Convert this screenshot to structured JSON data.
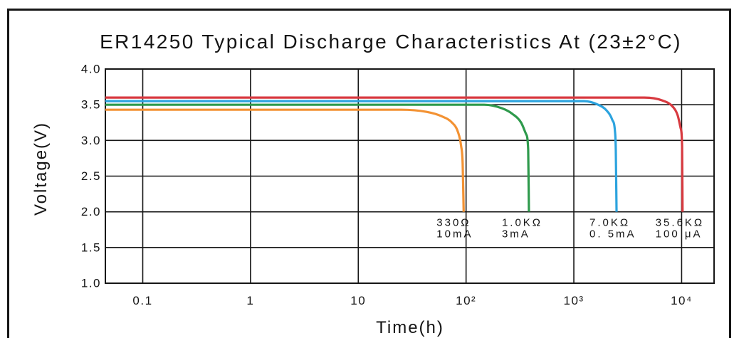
{
  "chart_data": {
    "type": "line",
    "title": "ER14250 Typical Discharge Characteristics At (23±2°C)",
    "xlabel": "Time(h)",
    "ylabel": "Voltage(V)",
    "xscale": "log",
    "xlim": [
      0.045,
      20000
    ],
    "ylim": [
      1.0,
      4.0
    ],
    "grid": true,
    "yticks": [
      {
        "value": 4.0,
        "label": "4.0"
      },
      {
        "value": 3.5,
        "label": "3.5"
      },
      {
        "value": 3.0,
        "label": "3.0"
      },
      {
        "value": 2.5,
        "label": "2.5"
      },
      {
        "value": 2.0,
        "label": "2.0"
      },
      {
        "value": 1.5,
        "label": "1.5"
      },
      {
        "value": 1.0,
        "label": "1.0"
      }
    ],
    "xticks": [
      {
        "value": 0.1,
        "label": "0.1"
      },
      {
        "value": 1,
        "label": "1"
      },
      {
        "value": 10,
        "label": "10"
      },
      {
        "value": 100,
        "label": "10²"
      },
      {
        "value": 1000,
        "label": "10³"
      },
      {
        "value": 10000,
        "label": "10⁴"
      }
    ],
    "series": [
      {
        "label_lines": [
          "330Ω",
          "10mA"
        ],
        "color": "#f39233",
        "points": [
          [
            0.045,
            3.43
          ],
          [
            25,
            3.43
          ],
          [
            43,
            3.4
          ],
          [
            59,
            3.34
          ],
          [
            74,
            3.25
          ],
          [
            84,
            3.12
          ],
          [
            90,
            2.92
          ],
          [
            93,
            2.67
          ],
          [
            95,
            2.0
          ]
        ]
      },
      {
        "label_lines": [
          "1.0KΩ",
          "3mA"
        ],
        "color": "#2e9a4c",
        "points": [
          [
            0.045,
            3.5
          ],
          [
            147,
            3.5
          ],
          [
            215,
            3.45
          ],
          [
            270,
            3.37
          ],
          [
            324,
            3.25
          ],
          [
            360,
            3.09
          ],
          [
            377,
            2.87
          ],
          [
            383,
            2.0
          ]
        ]
      },
      {
        "label_lines": [
          "7.0KΩ",
          "0. 5mA"
        ],
        "color": "#2ca3de",
        "points": [
          [
            0.045,
            3.55
          ],
          [
            1240,
            3.55
          ],
          [
            1680,
            3.5
          ],
          [
            2010,
            3.42
          ],
          [
            2270,
            3.29
          ],
          [
            2410,
            3.12
          ],
          [
            2450,
            2.87
          ],
          [
            2490,
            2.0
          ]
        ]
      },
      {
        "label_lines": [
          "35.6KΩ",
          "100 μA"
        ],
        "color": "#d83a40",
        "points": [
          [
            0.045,
            3.6
          ],
          [
            4500,
            3.6
          ],
          [
            6600,
            3.56
          ],
          [
            8300,
            3.47
          ],
          [
            9200,
            3.35
          ],
          [
            9800,
            3.17
          ],
          [
            10100,
            2.92
          ],
          [
            10200,
            2.0
          ]
        ]
      }
    ]
  }
}
